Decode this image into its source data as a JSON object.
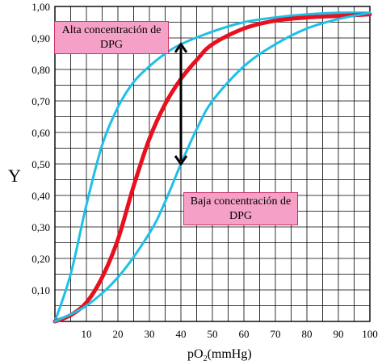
{
  "chart_data": {
    "type": "line",
    "title": "",
    "xlabel": {
      "base": "pO",
      "sub": "2",
      "unit": "(mmHg)"
    },
    "ylabel": "Y",
    "xlim": [
      0,
      100
    ],
    "ylim": [
      0,
      1.0
    ],
    "x_ticks": [
      "10",
      "20",
      "30",
      "40",
      "50",
      "60",
      "70",
      "80",
      "90",
      "100"
    ],
    "y_ticks": [
      "0,10",
      "0,20",
      "0,30",
      "0,40",
      "0,50",
      "0,60",
      "0,70",
      "0,80",
      "0,90",
      "1,00"
    ],
    "grid": true,
    "series": [
      {
        "color": "#1ec0e8",
        "x": [
          0,
          5,
          10,
          15,
          20,
          25,
          30,
          35,
          40,
          50,
          60,
          70,
          80,
          90,
          100
        ],
        "y": [
          0,
          0.15,
          0.37,
          0.56,
          0.68,
          0.76,
          0.81,
          0.85,
          0.88,
          0.92,
          0.95,
          0.965,
          0.975,
          0.98,
          0.98
        ]
      },
      {
        "color": "#e8101e",
        "x": [
          0,
          5,
          10,
          15,
          20,
          25,
          30,
          35,
          40,
          45,
          50,
          60,
          70,
          80,
          90,
          100
        ],
        "y": [
          0,
          0.02,
          0.06,
          0.14,
          0.26,
          0.43,
          0.58,
          0.69,
          0.77,
          0.83,
          0.88,
          0.93,
          0.955,
          0.965,
          0.97,
          0.975
        ]
      },
      {
        "color": "#1ec0e8",
        "x": [
          0,
          10,
          20,
          30,
          35,
          40,
          45,
          50,
          60,
          70,
          80,
          90,
          100
        ],
        "y": [
          0,
          0.05,
          0.14,
          0.28,
          0.38,
          0.5,
          0.61,
          0.7,
          0.81,
          0.88,
          0.93,
          0.96,
          0.98
        ]
      }
    ],
    "arrow": {
      "x": 40,
      "y_from": 0.5,
      "y_to": 0.88
    },
    "annotations": {
      "high": "Alta concentración de DPG",
      "low": "Baja concentración de DPG"
    }
  }
}
